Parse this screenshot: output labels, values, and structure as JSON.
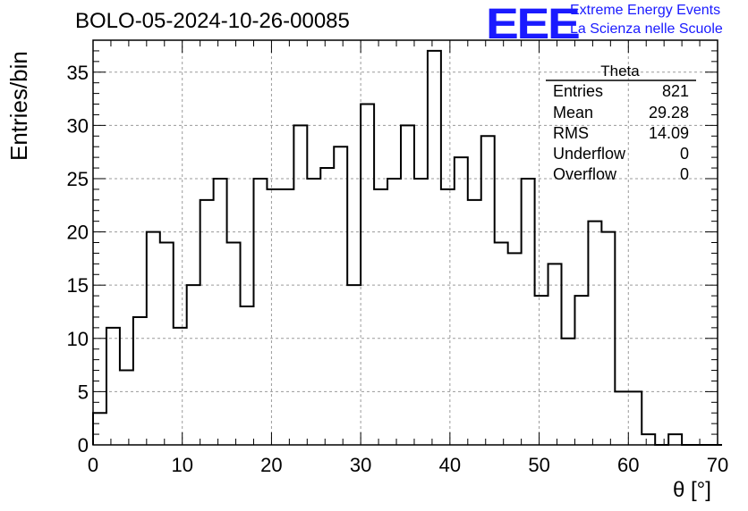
{
  "title": "BOLO-05-2024-10-26-00085",
  "logo": {
    "mark": "EEE",
    "line1": "Extreme Energy Events",
    "line2": "La Scienza nelle Scuole",
    "color": "#1a1aff"
  },
  "stats": {
    "name": "Theta",
    "rows": [
      {
        "key": "Entries",
        "value": "821"
      },
      {
        "key": "Mean",
        "value": "29.28"
      },
      {
        "key": "RMS",
        "value": "14.09"
      },
      {
        "key": "Underflow",
        "value": "0"
      },
      {
        "key": "Overflow",
        "value": "0"
      }
    ]
  },
  "chart_data": {
    "type": "bar",
    "style": "step-histogram",
    "xlabel": "θ [°]",
    "ylabel": "Entries/bin",
    "xlim": [
      0,
      70
    ],
    "ylim": [
      0,
      38
    ],
    "xticks": [
      0,
      10,
      20,
      30,
      40,
      50,
      60,
      70
    ],
    "yticks": [
      0,
      5,
      10,
      15,
      20,
      25,
      30,
      35
    ],
    "grid": true,
    "bin_width": 1.5,
    "bin_edges_start": 0,
    "values": [
      3,
      11,
      7,
      12,
      20,
      19,
      11,
      15,
      23,
      25,
      19,
      13,
      25,
      24,
      24,
      30,
      25,
      26,
      28,
      15,
      32,
      24,
      25,
      30,
      25,
      37,
      24,
      27,
      23,
      29,
      19,
      18,
      25,
      14,
      17,
      10,
      14,
      21,
      20,
      5,
      5,
      1,
      0,
      1,
      0,
      0,
      0
    ]
  }
}
